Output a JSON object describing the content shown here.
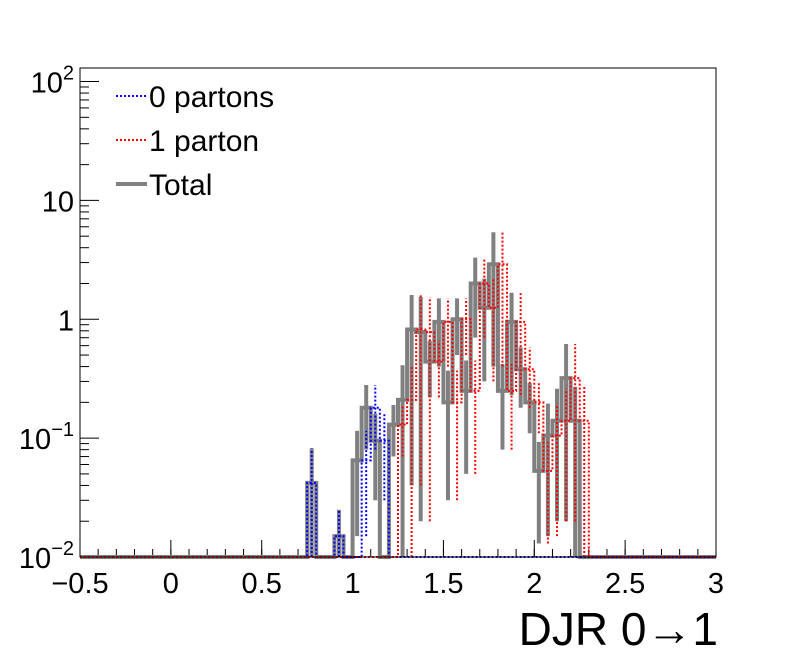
{
  "chart_data": {
    "type": "histogram",
    "title": "",
    "xlabel": "DJR 0→1",
    "ylabel": "",
    "xlim": [
      -0.5,
      3
    ],
    "ylim": [
      0.01,
      130
    ],
    "log_y": true,
    "grid": false,
    "legend_position": "top-left",
    "bin_width": 0.05,
    "x_ticks": [
      {
        "value": -0.5,
        "label": "−0.5"
      },
      {
        "value": 0,
        "label": "0"
      },
      {
        "value": 0.5,
        "label": "0.5"
      },
      {
        "value": 1,
        "label": "1"
      },
      {
        "value": 1.5,
        "label": "1.5"
      },
      {
        "value": 2,
        "label": "2"
      },
      {
        "value": 2.5,
        "label": "2.5"
      },
      {
        "value": 3,
        "label": "3"
      }
    ],
    "y_ticks": [
      {
        "value": 0.01,
        "base": "10",
        "exp": "−2",
        "label": ""
      },
      {
        "value": 0.1,
        "base": "10",
        "exp": "−1",
        "label": ""
      },
      {
        "value": 1,
        "base": "",
        "exp": "",
        "label": "1"
      },
      {
        "value": 10,
        "base": "",
        "exp": "",
        "label": "10"
      },
      {
        "value": 100,
        "base": "10",
        "exp": "2",
        "label": ""
      }
    ],
    "series": [
      {
        "name": "0 partons",
        "color": "#0000ff",
        "style": "dotted",
        "bins": [
          {
            "x0": 0.75,
            "y": 0.042,
            "err": 0.04
          },
          {
            "x0": 0.8,
            "y": 0.01,
            "err": 0
          },
          {
            "x0": 0.85,
            "y": 0.01,
            "err": 0
          },
          {
            "x0": 0.9,
            "y": 0.015,
            "err": 0.01
          },
          {
            "x0": 0.95,
            "y": 0.01,
            "err": 0
          },
          {
            "x0": 1.0,
            "y": 0.01,
            "err": 0
          },
          {
            "x0": 1.05,
            "y": 0.065,
            "err": 0.05
          },
          {
            "x0": 1.1,
            "y": 0.18,
            "err": 0.1
          },
          {
            "x0": 1.15,
            "y": 0.095,
            "err": 0.065
          },
          {
            "x0": 1.2,
            "y": 0.01,
            "err": 0
          }
        ]
      },
      {
        "name": "1 parton",
        "color": "#ff0000",
        "style": "dotted",
        "bins": [
          {
            "x0": 1.25,
            "y": 0.13,
            "err": 0.06
          },
          {
            "x0": 1.3,
            "y": 0.21,
            "err": 0.2
          },
          {
            "x0": 1.35,
            "y": 0.82,
            "err": 0.78
          },
          {
            "x0": 1.4,
            "y": 0.78,
            "err": 0.76
          },
          {
            "x0": 1.45,
            "y": 0.44,
            "err": 0.22
          },
          {
            "x0": 1.5,
            "y": 0.95,
            "err": 0.55
          },
          {
            "x0": 1.55,
            "y": 0.2,
            "err": 0.17
          },
          {
            "x0": 1.6,
            "y": 1.0,
            "err": 0.5
          },
          {
            "x0": 1.65,
            "y": 0.25,
            "err": 0.2
          },
          {
            "x0": 1.7,
            "y": 2.0,
            "err": 1.3
          },
          {
            "x0": 1.75,
            "y": 1.25,
            "err": 0.95
          },
          {
            "x0": 1.8,
            "y": 2.9,
            "err": 2.5
          },
          {
            "x0": 1.85,
            "y": 0.25,
            "err": 0.17
          },
          {
            "x0": 1.9,
            "y": 0.95,
            "err": 0.72
          },
          {
            "x0": 1.95,
            "y": 0.38,
            "err": 0.2
          },
          {
            "x0": 2.0,
            "y": 0.2,
            "err": 0.09
          },
          {
            "x0": 2.05,
            "y": 0.053,
            "err": 0.04
          },
          {
            "x0": 2.1,
            "y": 0.105,
            "err": 0.09
          },
          {
            "x0": 2.15,
            "y": 0.14,
            "err": 0.12
          },
          {
            "x0": 2.2,
            "y": 0.32,
            "err": 0.3
          },
          {
            "x0": 2.25,
            "y": 0.14,
            "err": 0.13
          },
          {
            "x0": 2.3,
            "y": 0.01,
            "err": 0
          }
        ]
      },
      {
        "name": "Total",
        "color": "#808080",
        "style": "solid",
        "bins": [
          {
            "x0": 0.75,
            "y": 0.042,
            "err": 0.04
          },
          {
            "x0": 0.8,
            "y": 0.01,
            "err": 0
          },
          {
            "x0": 0.85,
            "y": 0.01,
            "err": 0
          },
          {
            "x0": 0.9,
            "y": 0.015,
            "err": 0.01
          },
          {
            "x0": 0.95,
            "y": 0.01,
            "err": 0
          },
          {
            "x0": 1.0,
            "y": 0.065,
            "err": 0.05
          },
          {
            "x0": 1.05,
            "y": 0.18,
            "err": 0.1
          },
          {
            "x0": 1.1,
            "y": 0.095,
            "err": 0.065
          },
          {
            "x0": 1.15,
            "y": 0.01,
            "err": 0
          },
          {
            "x0": 1.2,
            "y": 0.13,
            "err": 0.06
          },
          {
            "x0": 1.25,
            "y": 0.21,
            "err": 0.2
          },
          {
            "x0": 1.3,
            "y": 0.82,
            "err": 0.78
          },
          {
            "x0": 1.35,
            "y": 0.78,
            "err": 0.76
          },
          {
            "x0": 1.4,
            "y": 0.44,
            "err": 0.22
          },
          {
            "x0": 1.45,
            "y": 0.95,
            "err": 0.55
          },
          {
            "x0": 1.5,
            "y": 0.2,
            "err": 0.17
          },
          {
            "x0": 1.55,
            "y": 1.0,
            "err": 0.5
          },
          {
            "x0": 1.6,
            "y": 0.25,
            "err": 0.2
          },
          {
            "x0": 1.65,
            "y": 2.0,
            "err": 1.3
          },
          {
            "x0": 1.7,
            "y": 1.25,
            "err": 0.95
          },
          {
            "x0": 1.75,
            "y": 2.9,
            "err": 2.5
          },
          {
            "x0": 1.8,
            "y": 0.25,
            "err": 0.17
          },
          {
            "x0": 1.85,
            "y": 0.95,
            "err": 0.72
          },
          {
            "x0": 1.9,
            "y": 0.38,
            "err": 0.2
          },
          {
            "x0": 1.95,
            "y": 0.2,
            "err": 0.09
          },
          {
            "x0": 2.0,
            "y": 0.053,
            "err": 0.04
          },
          {
            "x0": 2.05,
            "y": 0.105,
            "err": 0.09
          },
          {
            "x0": 2.1,
            "y": 0.14,
            "err": 0.12
          },
          {
            "x0": 2.15,
            "y": 0.32,
            "err": 0.3
          },
          {
            "x0": 2.2,
            "y": 0.14,
            "err": 0.13
          },
          {
            "x0": 2.25,
            "y": 0.01,
            "err": 0
          }
        ]
      }
    ]
  }
}
